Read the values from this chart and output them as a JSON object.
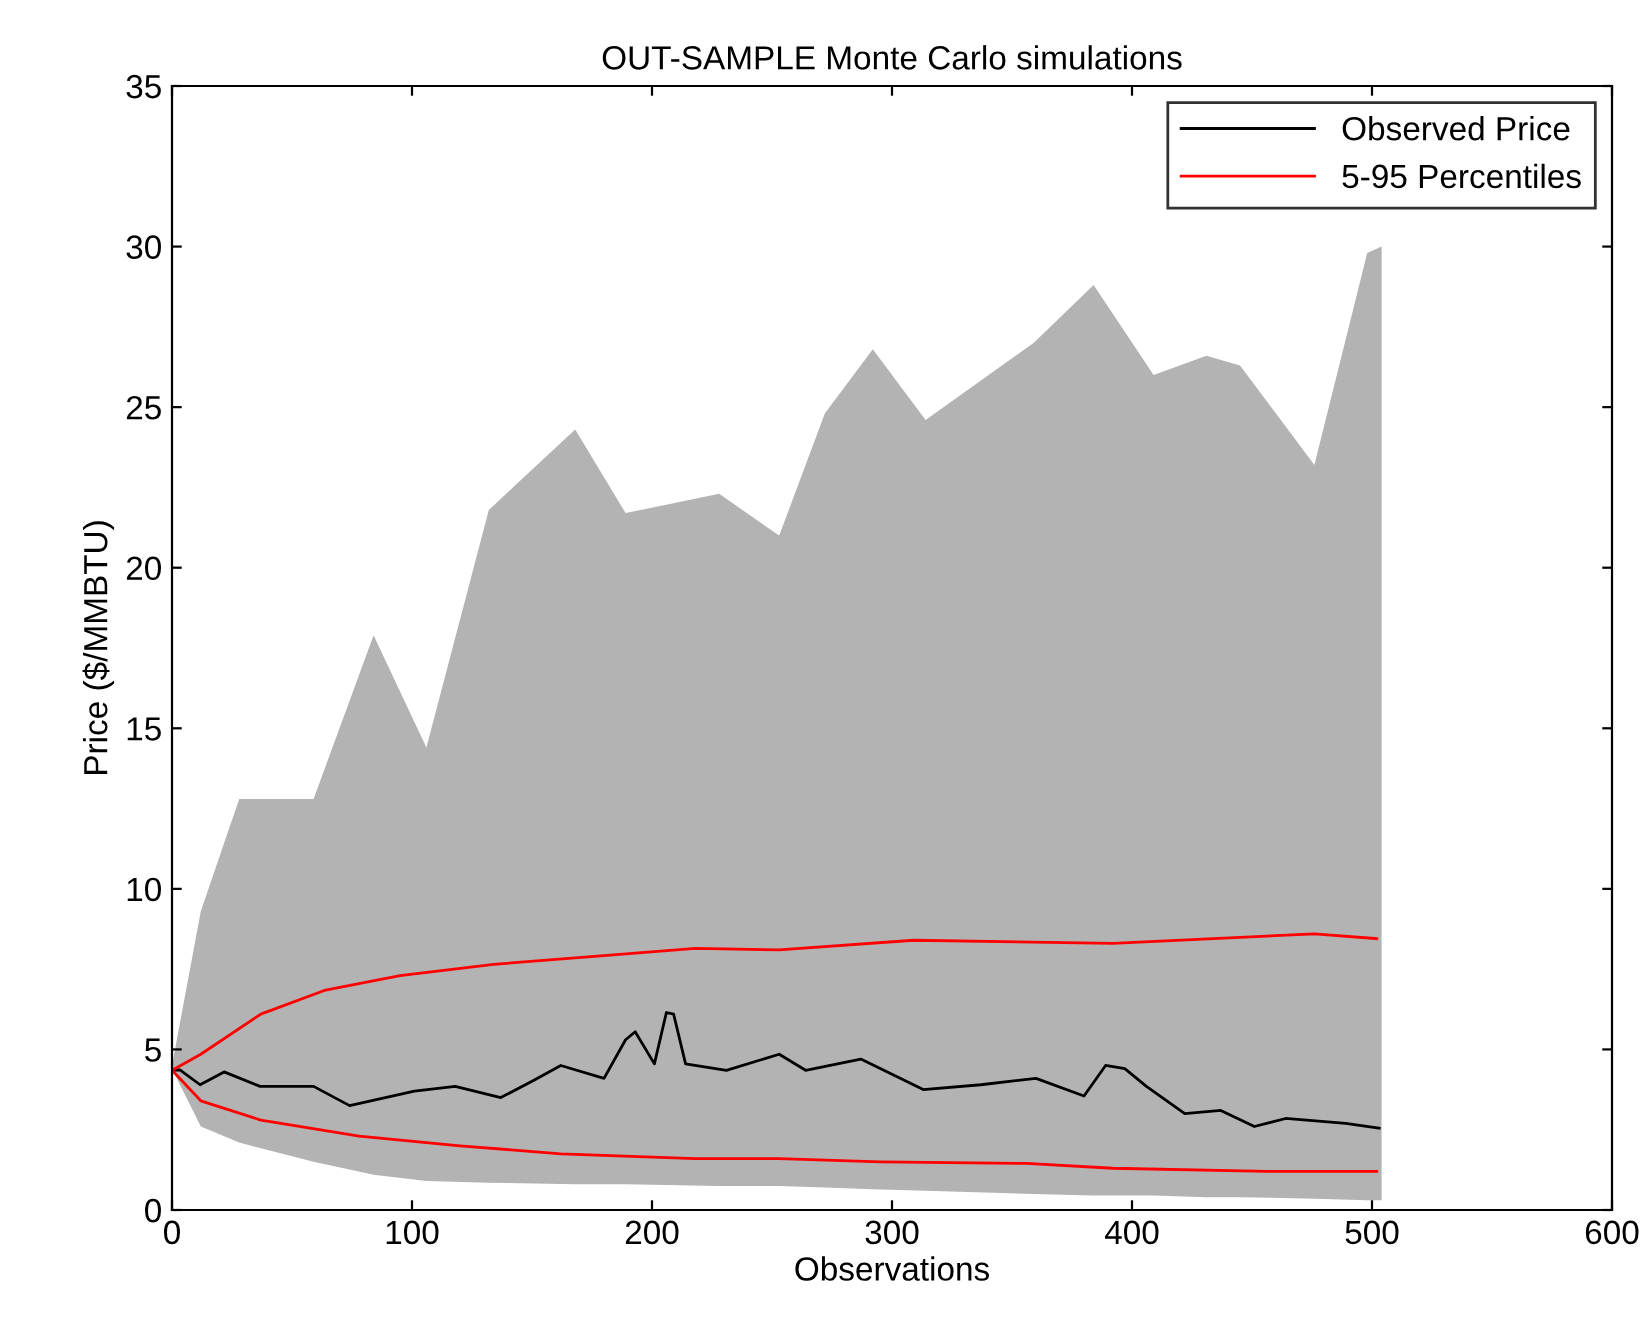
{
  "chart_data": {
    "type": "line",
    "title": "OUT-SAMPLE Monte Carlo simulations",
    "xlabel": "Observations",
    "ylabel": "Price ($/MMBTU)",
    "xlim": [
      0,
      600
    ],
    "xticks": [
      0,
      100,
      200,
      300,
      400,
      500,
      600
    ],
    "ylim": [
      0,
      35
    ],
    "yticks": [
      0,
      5,
      10,
      15,
      20,
      25,
      30,
      35
    ],
    "grid": false,
    "legend": "top right",
    "series": [
      {
        "color": "#b3b3b3",
        "x": [
          0,
          12,
          28,
          59,
          84,
          106,
          132,
          168,
          189,
          228,
          253,
          272,
          292,
          314,
          359,
          384,
          409,
          431,
          445,
          476,
          498,
          504
        ],
        "values": [
          null,
          null,
          null,
          null,
          null,
          null,
          null,
          null,
          null,
          null,
          null,
          null,
          null,
          null,
          null,
          null,
          null,
          null,
          null,
          null,
          null,
          null
        ],
        "upper": [
          4.5,
          9.3,
          12.8,
          12.8,
          17.9,
          14.4,
          21.8,
          24.3,
          21.7,
          22.3,
          21.0,
          24.8,
          26.8,
          24.6,
          27.0,
          28.8,
          26.0,
          26.6,
          26.3,
          23.2,
          29.8,
          30.0
        ],
        "lower": [
          4.4,
          2.6,
          2.1,
          1.5,
          1.1,
          0.9,
          0.85,
          0.8,
          0.8,
          0.75,
          0.75,
          0.7,
          0.65,
          0.6,
          0.5,
          0.45,
          0.45,
          0.4,
          0.4,
          0.35,
          0.3,
          0.3
        ]
      },
      {
        "name": "Observed Price",
        "color": "#000000",
        "x": [
          0,
          3.3,
          11.7,
          21.7,
          36.7,
          59,
          74,
          101,
          118,
          137,
          151,
          162,
          180,
          189,
          193,
          201,
          206,
          209,
          214,
          231,
          253,
          264,
          287,
          313,
          337,
          360,
          380,
          389,
          397,
          406,
          422,
          437,
          451,
          464,
          489,
          503
        ],
        "values": [
          4.35,
          4.36,
          3.9,
          4.3,
          3.85,
          3.85,
          3.25,
          3.7,
          3.85,
          3.5,
          4.05,
          4.5,
          4.1,
          5.3,
          5.55,
          4.55,
          6.15,
          6.1,
          4.55,
          4.35,
          4.85,
          4.35,
          4.7,
          3.75,
          3.9,
          4.1,
          3.55,
          4.5,
          4.4,
          3.85,
          3.0,
          3.1,
          2.6,
          2.85,
          2.7,
          2.55
        ]
      },
      {
        "name": "5-95 Percentiles",
        "color": "#ff0000",
        "x": [
          0,
          12,
          37,
          64,
          95,
          134,
          176,
          218,
          253,
          309,
          392,
          476,
          502
        ],
        "values": [
          4.35,
          4.85,
          6.1,
          6.85,
          7.3,
          7.65,
          7.9,
          8.15,
          8.1,
          8.4,
          8.3,
          8.6,
          8.45
        ]
      },
      {
        "color": "#ff0000",
        "x": [
          0,
          12,
          37,
          78,
          120,
          162,
          218,
          253,
          295,
          356,
          392,
          456,
          502
        ],
        "values": [
          4.35,
          3.4,
          2.8,
          2.3,
          2.0,
          1.75,
          1.6,
          1.6,
          1.5,
          1.45,
          1.3,
          1.2,
          1.2
        ]
      }
    ]
  }
}
